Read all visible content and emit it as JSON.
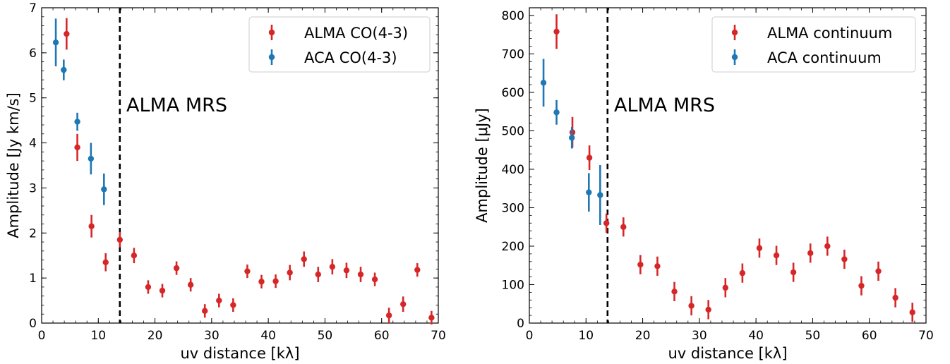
{
  "chart_data": [
    {
      "type": "scatter",
      "xlabel": "uv distance [kλ]",
      "ylabel": "Amplitude [Jy km/s]",
      "xlim": [
        0,
        70
      ],
      "ylim": [
        0,
        7
      ],
      "xticks": [
        0,
        10,
        20,
        30,
        40,
        50,
        60,
        70
      ],
      "yticks": [
        0,
        1,
        2,
        3,
        4,
        5,
        6,
        7
      ],
      "legend_position": "top-right",
      "grid": false,
      "vline": {
        "x": 13.8,
        "label": "ALMA MRS"
      },
      "series": [
        {
          "name": "ALMA CO(4-3)",
          "color": "#d62728",
          "x": [
            4.4,
            6.3,
            8.8,
            11.3,
            13.8,
            16.3,
            18.8,
            21.3,
            23.8,
            26.3,
            28.8,
            31.3,
            33.8,
            36.3,
            38.8,
            41.3,
            43.8,
            46.3,
            48.8,
            51.3,
            53.8,
            56.3,
            58.8,
            61.3,
            63.8,
            66.3,
            68.8
          ],
          "y": [
            6.42,
            3.9,
            2.15,
            1.35,
            1.85,
            1.5,
            0.8,
            0.72,
            1.22,
            0.85,
            0.27,
            0.5,
            0.4,
            1.15,
            0.92,
            0.93,
            1.12,
            1.42,
            1.08,
            1.25,
            1.17,
            1.08,
            0.97,
            0.17,
            0.42,
            1.18,
            0.12
          ],
          "err": [
            0.35,
            0.3,
            0.25,
            0.2,
            0.17,
            0.17,
            0.15,
            0.15,
            0.15,
            0.15,
            0.15,
            0.15,
            0.15,
            0.15,
            0.15,
            0.15,
            0.17,
            0.17,
            0.17,
            0.17,
            0.17,
            0.17,
            0.15,
            0.17,
            0.17,
            0.15,
            0.15
          ]
        },
        {
          "name": "ACA CO(4-3)",
          "color": "#1f77b4",
          "x": [
            2.5,
            3.9,
            6.3,
            8.7,
            11.0
          ],
          "y": [
            6.23,
            5.62,
            4.47,
            3.65,
            2.97
          ],
          "err": [
            0.53,
            0.23,
            0.2,
            0.35,
            0.35
          ]
        }
      ]
    },
    {
      "type": "scatter",
      "xlabel": "uv distance [kλ]",
      "ylabel": "Amplitude [μJy]",
      "xlim": [
        0,
        70
      ],
      "ylim": [
        0,
        820
      ],
      "xticks": [
        0,
        10,
        20,
        30,
        40,
        50,
        60,
        70
      ],
      "yticks": [
        0,
        100,
        200,
        300,
        400,
        500,
        600,
        700,
        800
      ],
      "legend_position": "top-right",
      "grid": false,
      "vline": {
        "x": 13.8,
        "label": "ALMA MRS"
      },
      "series": [
        {
          "name": "ALMA continuum",
          "color": "#d62728",
          "x": [
            4.8,
            7.6,
            10.6,
            13.6,
            16.6,
            19.6,
            22.6,
            25.6,
            28.6,
            31.6,
            34.6,
            37.6,
            40.6,
            43.6,
            46.6,
            49.6,
            52.6,
            55.6,
            58.6,
            61.6,
            64.6,
            67.6
          ],
          "y": [
            758,
            496,
            430,
            260,
            250,
            152,
            148,
            82,
            45,
            35,
            92,
            130,
            195,
            176,
            132,
            182,
            200,
            166,
            97,
            135,
            66,
            28
          ],
          "err": [
            45,
            40,
            32,
            25,
            25,
            25,
            25,
            25,
            25,
            25,
            25,
            25,
            25,
            25,
            25,
            25,
            25,
            25,
            25,
            25,
            25,
            25
          ]
        },
        {
          "name": "ACA continuum",
          "color": "#1f77b4",
          "x": [
            2.5,
            4.8,
            7.5,
            10.5,
            12.5
          ],
          "y": [
            625,
            548,
            482,
            340,
            333
          ],
          "err": [
            62,
            32,
            28,
            50,
            78
          ]
        }
      ]
    }
  ]
}
